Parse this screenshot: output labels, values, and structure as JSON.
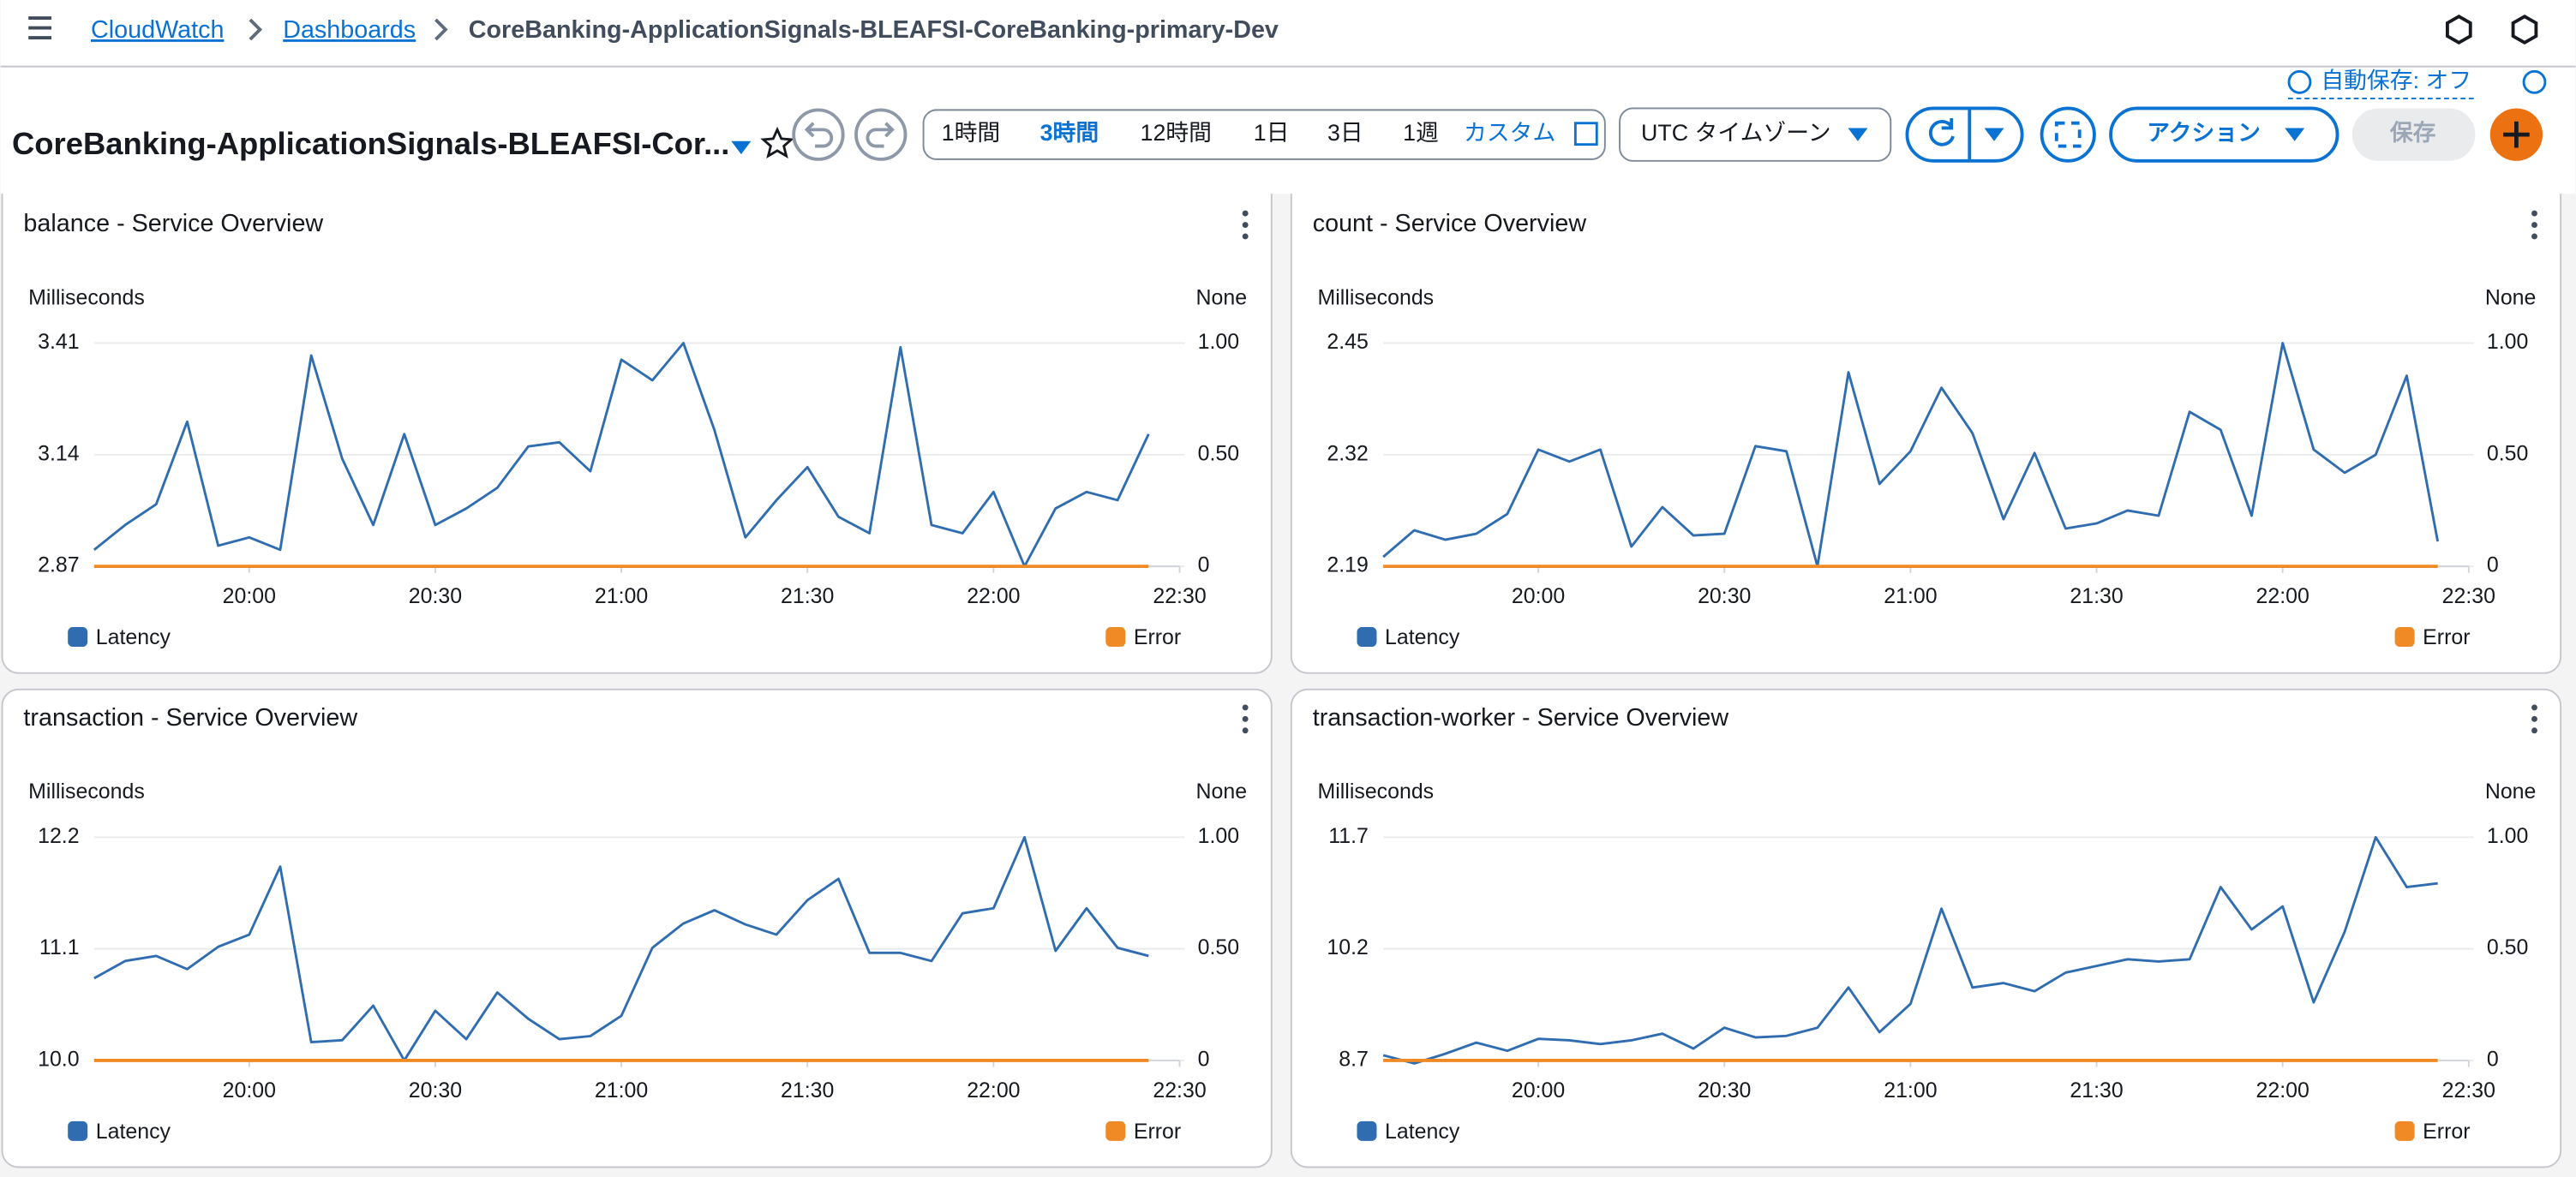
{
  "breadcrumb": [
    "CloudWatch",
    "Dashboards",
    "CoreBanking-ApplicationSignals-BLEAFSI-CoreBanking-primary-Dev"
  ],
  "autosave": "自動保存: オフ",
  "dashboard_title": "CoreBanking-ApplicationSignals-BLEAFSI-Cor...",
  "toolbar": {
    "time_ranges": [
      "1時間",
      "3時間",
      "12時間",
      "1日",
      "3日",
      "1週",
      "カスタム"
    ],
    "timezone": "UTC タイムゾーン",
    "actions": "アクション",
    "save": "保存"
  },
  "chart_data": [
    {
      "type": "line",
      "title": "balance - Service Overview",
      "y_label": "Milliseconds",
      "y2_label": "None",
      "x": [
        "19:35",
        "19:40",
        "19:45",
        "19:50",
        "19:55",
        "20:00",
        "20:05",
        "20:10",
        "20:15",
        "20:20",
        "20:25",
        "20:30",
        "20:35",
        "20:40",
        "20:45",
        "20:50",
        "20:55",
        "21:00",
        "21:05",
        "21:10",
        "21:15",
        "21:20",
        "21:25",
        "21:30",
        "21:35",
        "21:40",
        "21:45",
        "21:50",
        "21:55",
        "22:00",
        "22:05",
        "22:10",
        "22:15",
        "22:20",
        "22:25"
      ],
      "xlim": [
        "19:35",
        "22:30"
      ],
      "xticks": [
        "20:00",
        "20:30",
        "21:00",
        "21:30",
        "22:00",
        "22:30"
      ],
      "ylim": [
        2.87,
        3.41
      ],
      "yticks": [
        2.87,
        3.14,
        3.41
      ],
      "y2lim": [
        0,
        1
      ],
      "y2ticks": [
        0,
        {
          "value": 0.5,
          "label": "0.50"
        },
        {
          "value": 1,
          "label": "1.00"
        }
      ],
      "grid": true,
      "series": [
        {
          "name": "Latency",
          "color": "#2f6db0",
          "values": [
            2.91,
            2.97,
            3.02,
            3.22,
            2.92,
            2.94,
            2.91,
            3.38,
            3.13,
            2.97,
            3.19,
            2.97,
            3.01,
            3.06,
            3.16,
            3.17,
            3.1,
            3.37,
            3.32,
            3.41,
            3.2,
            2.94,
            3.03,
            3.11,
            2.99,
            2.95,
            3.4,
            2.97,
            2.95,
            3.05,
            2.87,
            3.01,
            3.05,
            3.03,
            3.19
          ]
        },
        {
          "name": "Error",
          "color": "#f08a24",
          "axis": "y2",
          "values": [
            0,
            0,
            0,
            0,
            0,
            0,
            0,
            0,
            0,
            0,
            0,
            0,
            0,
            0,
            0,
            0,
            0,
            0,
            0,
            0,
            0,
            0,
            0,
            0,
            0,
            0,
            0,
            0,
            0,
            0,
            0,
            0,
            0,
            0,
            0
          ]
        }
      ]
    },
    {
      "type": "line",
      "title": "count - Service Overview",
      "y_label": "Milliseconds",
      "y2_label": "None",
      "x": [
        "19:35",
        "19:40",
        "19:45",
        "19:50",
        "19:55",
        "20:00",
        "20:05",
        "20:10",
        "20:15",
        "20:20",
        "20:25",
        "20:30",
        "20:35",
        "20:40",
        "20:45",
        "20:50",
        "20:55",
        "21:00",
        "21:05",
        "21:10",
        "21:15",
        "21:20",
        "21:25",
        "21:30",
        "21:35",
        "21:40",
        "21:45",
        "21:50",
        "21:55",
        "22:00",
        "22:05",
        "22:10",
        "22:15",
        "22:20",
        "22:25"
      ],
      "xlim": [
        "19:35",
        "22:30"
      ],
      "xticks": [
        "20:00",
        "20:30",
        "21:00",
        "21:30",
        "22:00",
        "22:30"
      ],
      "ylim": [
        2.19,
        2.45
      ],
      "yticks": [
        2.19,
        2.32,
        2.45
      ],
      "y2lim": [
        0,
        1
      ],
      "y2ticks": [
        0,
        {
          "value": 0.5,
          "label": "0.50"
        },
        {
          "value": 1,
          "label": "1.00"
        }
      ],
      "grid": true,
      "series": [
        {
          "name": "Latency",
          "color": "#2f6db0",
          "values": [
            2.201,
            2.232,
            2.221,
            2.228,
            2.251,
            2.326,
            2.312,
            2.326,
            2.213,
            2.259,
            2.226,
            2.228,
            2.33,
            2.324,
            2.19,
            2.416,
            2.286,
            2.324,
            2.398,
            2.345,
            2.245,
            2.322,
            2.234,
            2.24,
            2.255,
            2.249,
            2.37,
            2.349,
            2.249,
            2.45,
            2.326,
            2.299,
            2.32,
            2.412,
            2.219
          ]
        },
        {
          "name": "Error",
          "color": "#f08a24",
          "axis": "y2",
          "values": [
            0,
            0,
            0,
            0,
            0,
            0,
            0,
            0,
            0,
            0,
            0,
            0,
            0,
            0,
            0,
            0,
            0,
            0,
            0,
            0,
            0,
            0,
            0,
            0,
            0,
            0,
            0,
            0,
            0,
            0,
            0,
            0,
            0,
            0,
            0
          ]
        }
      ]
    },
    {
      "type": "line",
      "title": "transaction - Service Overview",
      "y_label": "Milliseconds",
      "y2_label": "None",
      "x": [
        "19:35",
        "19:40",
        "19:45",
        "19:50",
        "19:55",
        "20:00",
        "20:05",
        "20:10",
        "20:15",
        "20:20",
        "20:25",
        "20:30",
        "20:35",
        "20:40",
        "20:45",
        "20:50",
        "20:55",
        "21:00",
        "21:05",
        "21:10",
        "21:15",
        "21:20",
        "21:25",
        "21:30",
        "21:35",
        "21:40",
        "21:45",
        "21:50",
        "21:55",
        "22:00",
        "22:05",
        "22:10",
        "22:15",
        "22:20",
        "22:25"
      ],
      "xlim": [
        "19:35",
        "22:30"
      ],
      "xticks": [
        "20:00",
        "20:30",
        "21:00",
        "21:30",
        "22:00",
        "22:30"
      ],
      "ylim": [
        10,
        12.2
      ],
      "yticks": [
        {
          "value": 10,
          "label": "10.0"
        },
        11.1,
        12.2
      ],
      "y2lim": [
        0,
        1
      ],
      "y2ticks": [
        0,
        {
          "value": 0.5,
          "label": "0.50"
        },
        {
          "value": 1,
          "label": "1.00"
        }
      ],
      "grid": true,
      "series": [
        {
          "name": "Latency",
          "color": "#2f6db0",
          "values": [
            10.81,
            10.98,
            11.03,
            10.9,
            11.12,
            11.24,
            11.91,
            10.18,
            10.2,
            10.54,
            10.0,
            10.49,
            10.21,
            10.67,
            10.41,
            10.21,
            10.24,
            10.44,
            11.11,
            11.35,
            11.48,
            11.34,
            11.24,
            11.58,
            11.79,
            11.06,
            11.06,
            10.98,
            11.45,
            11.5,
            12.2,
            11.08,
            11.5,
            11.11,
            11.03
          ]
        },
        {
          "name": "Error",
          "color": "#f08a24",
          "axis": "y2",
          "values": [
            0,
            0,
            0,
            0,
            0,
            0,
            0,
            0,
            0,
            0,
            0,
            0,
            0,
            0,
            0,
            0,
            0,
            0,
            0,
            0,
            0,
            0,
            0,
            0,
            0,
            0,
            0,
            0,
            0,
            0,
            0,
            0,
            0,
            0,
            0
          ]
        }
      ]
    },
    {
      "type": "line",
      "title": "transaction-worker - Service Overview",
      "y_label": "Milliseconds",
      "y2_label": "None",
      "x": [
        "19:35",
        "19:40",
        "19:45",
        "19:50",
        "19:55",
        "20:00",
        "20:05",
        "20:10",
        "20:15",
        "20:20",
        "20:25",
        "20:30",
        "20:35",
        "20:40",
        "20:45",
        "20:50",
        "20:55",
        "21:00",
        "21:05",
        "21:10",
        "21:15",
        "21:20",
        "21:25",
        "21:30",
        "21:35",
        "21:40",
        "21:45",
        "21:50",
        "21:55",
        "22:00",
        "22:05",
        "22:10",
        "22:15",
        "22:20",
        "22:25"
      ],
      "xlim": [
        "19:35",
        "22:30"
      ],
      "xticks": [
        "20:00",
        "20:30",
        "21:00",
        "21:30",
        "22:00",
        "22:30"
      ],
      "ylim": [
        8.7,
        11.7
      ],
      "yticks": [
        8.7,
        10.2,
        11.7
      ],
      "y2lim": [
        0,
        1
      ],
      "y2ticks": [
        0,
        {
          "value": 0.5,
          "label": "0.50"
        },
        {
          "value": 1,
          "label": "1.00"
        }
      ],
      "grid": true,
      "series": [
        {
          "name": "Latency",
          "color": "#2f6db0",
          "values": [
            8.77,
            8.66,
            8.79,
            8.94,
            8.83,
            8.99,
            8.97,
            8.92,
            8.97,
            9.06,
            8.86,
            9.14,
            9.01,
            9.03,
            9.14,
            9.68,
            9.08,
            9.46,
            10.74,
            9.68,
            9.74,
            9.63,
            9.88,
            9.97,
            10.06,
            10.03,
            10.06,
            11.03,
            10.46,
            10.77,
            9.48,
            10.43,
            11.7,
            11.03,
            11.08
          ]
        },
        {
          "name": "Error",
          "color": "#f08a24",
          "axis": "y2",
          "values": [
            0,
            0,
            0,
            0,
            0,
            0,
            0,
            0,
            0,
            0,
            0,
            0,
            0,
            0,
            0,
            0,
            0,
            0,
            0,
            0,
            0,
            0,
            0,
            0,
            0,
            0,
            0,
            0,
            0,
            0,
            0,
            0,
            0,
            0,
            0
          ]
        }
      ]
    }
  ]
}
